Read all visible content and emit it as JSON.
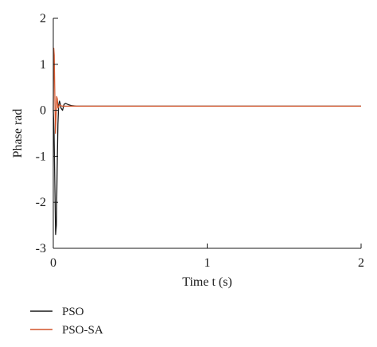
{
  "chart_data": {
    "type": "line",
    "xlabel": "Time t (s)",
    "ylabel": "Phase rad",
    "xlim": [
      0,
      2
    ],
    "ylim": [
      -3,
      2
    ],
    "xticks": [
      0,
      1,
      2
    ],
    "yticks": [
      -3,
      -2,
      -1,
      0,
      1,
      2
    ],
    "grid": false,
    "legend_position": "bottom-left",
    "series": [
      {
        "name": "PSO",
        "color": "#1a1a1a",
        "x": [
          0,
          0.005,
          0.01,
          0.015,
          0.02,
          0.025,
          0.03,
          0.035,
          0.04,
          0.045,
          0.05,
          0.06,
          0.07,
          0.08,
          0.1,
          0.12,
          0.15,
          0.2,
          0.3,
          0.5,
          1.0,
          1.5,
          2.0
        ],
        "values": [
          0,
          -0.5,
          -1.6,
          -2.7,
          -2.5,
          -1.3,
          -0.3,
          0.12,
          0.2,
          0.15,
          0.05,
          0.0,
          0.13,
          0.15,
          0.12,
          0.1,
          0.09,
          0.09,
          0.09,
          0.09,
          0.09,
          0.09,
          0.09
        ]
      },
      {
        "name": "PSO-SA",
        "color": "#d2542a",
        "x": [
          0,
          0.003,
          0.006,
          0.01,
          0.014,
          0.018,
          0.022,
          0.026,
          0.03,
          0.035,
          0.04,
          0.05,
          0.06,
          0.08,
          0.1,
          0.15,
          0.2,
          0.3,
          0.5,
          1.0,
          1.5,
          2.0
        ],
        "values": [
          0,
          1.35,
          1.2,
          0.3,
          -0.5,
          -0.15,
          0.3,
          0.25,
          0.05,
          0.08,
          0.12,
          0.1,
          0.09,
          0.09,
          0.09,
          0.09,
          0.09,
          0.09,
          0.09,
          0.09,
          0.09,
          0.09
        ]
      }
    ]
  }
}
